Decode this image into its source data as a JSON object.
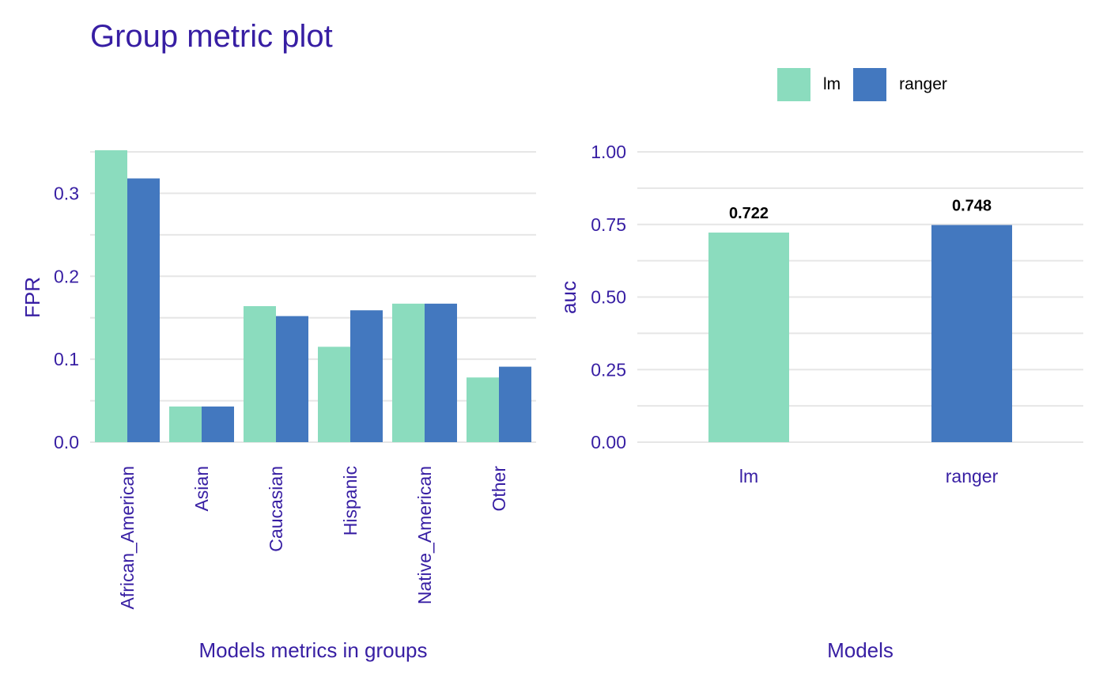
{
  "title": "Group metric plot",
  "colors": {
    "text": "#371ea3",
    "grid": "#e6e6e6",
    "lm": "#8bdcbe",
    "ranger": "#4378bf"
  },
  "legend": {
    "position": "top-right",
    "items": [
      {
        "label": "lm",
        "color": "#8bdcbe"
      },
      {
        "label": "ranger",
        "color": "#4378bf"
      }
    ]
  },
  "chart_data": [
    {
      "type": "bar",
      "title": "",
      "xlabel": "Models metrics in groups",
      "ylabel": "FPR",
      "ylim": [
        0,
        0.35
      ],
      "yticks": [
        "0.0",
        "0.1",
        "0.2",
        "0.3"
      ],
      "ytick_values": [
        0,
        0.1,
        0.2,
        0.3
      ],
      "grid": true,
      "categories": [
        "African_American",
        "Asian",
        "Caucasian",
        "Hispanic",
        "Native_American",
        "Other"
      ],
      "series": [
        {
          "name": "lm",
          "color": "#8bdcbe",
          "values": [
            0.352,
            0.043,
            0.164,
            0.115,
            0.167,
            0.078
          ]
        },
        {
          "name": "ranger",
          "color": "#4378bf",
          "values": [
            0.318,
            0.043,
            0.152,
            0.159,
            0.167,
            0.091
          ]
        }
      ]
    },
    {
      "type": "bar",
      "title": "",
      "xlabel": "Models",
      "ylabel": "auc",
      "ylim": [
        0,
        1
      ],
      "yticks": [
        "0.00",
        "0.25",
        "0.50",
        "0.75",
        "1.00"
      ],
      "ytick_values": [
        0,
        0.25,
        0.5,
        0.75,
        1.0
      ],
      "grid": true,
      "categories": [
        "lm",
        "ranger"
      ],
      "values": [
        0.722,
        0.748
      ],
      "colors": [
        "#8bdcbe",
        "#4378bf"
      ],
      "data_labels": [
        "0.722",
        "0.748"
      ]
    }
  ]
}
